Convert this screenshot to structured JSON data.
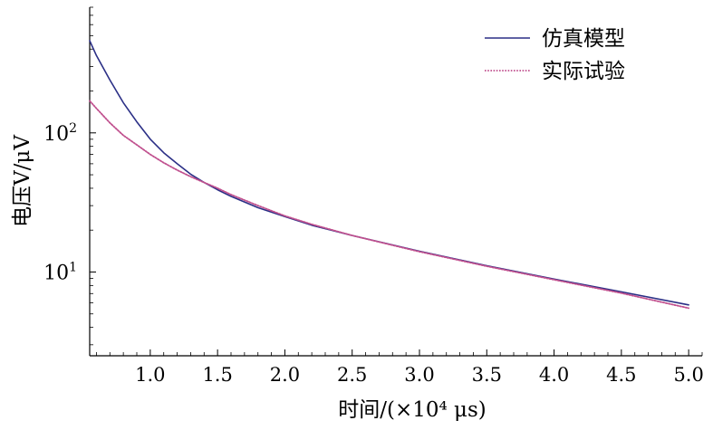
{
  "chart_data": {
    "type": "line",
    "xlabel": "时间/(×10⁴ μs)",
    "ylabel": "电压V/μV",
    "xlim": [
      0.55,
      5.1
    ],
    "ylim": [
      2.5,
      800
    ],
    "yscale": "log",
    "xticks": [
      1.0,
      1.5,
      2.0,
      2.5,
      3.0,
      3.5,
      4.0,
      4.5,
      5.0
    ],
    "xtick_labels": [
      "1.0",
      "1.5",
      "2.0",
      "2.5",
      "3.0",
      "3.5",
      "4.0",
      "4.5",
      "5.0"
    ],
    "yticks": [
      10,
      100
    ],
    "ytick_labels": [
      {
        "base": "10",
        "exp": "1"
      },
      {
        "base": "10",
        "exp": "2"
      }
    ],
    "grid": false,
    "legend": "top-right",
    "series": [
      {
        "name": "仿真模型",
        "color": "#2b2f86",
        "style": "solid",
        "x": [
          0.55,
          0.6,
          0.7,
          0.8,
          0.9,
          1.0,
          1.1,
          1.2,
          1.3,
          1.4,
          1.5,
          1.6,
          1.8,
          2.0,
          2.2,
          2.5,
          3.0,
          3.5,
          4.0,
          4.5,
          5.0
        ],
        "y": [
          460,
          360,
          240,
          165,
          120,
          90,
          72,
          60,
          50.5,
          44,
          39,
          35,
          29,
          25,
          21.7,
          18.3,
          14.1,
          11.1,
          8.9,
          7.2,
          5.8
        ]
      },
      {
        "name": "实际试验",
        "color": "#c0508e",
        "style": "dotted",
        "x": [
          0.55,
          0.6,
          0.7,
          0.8,
          0.9,
          1.0,
          1.1,
          1.2,
          1.3,
          1.4,
          1.5,
          1.6,
          1.8,
          2.0,
          2.2,
          2.5,
          3.0,
          3.5,
          4.0,
          4.5,
          5.0
        ],
        "y": [
          170,
          150,
          118,
          96,
          82,
          70,
          61,
          54,
          48.5,
          44,
          40,
          36,
          30,
          25.3,
          22,
          18.3,
          14,
          11,
          8.8,
          7.05,
          5.5
        ]
      }
    ]
  }
}
